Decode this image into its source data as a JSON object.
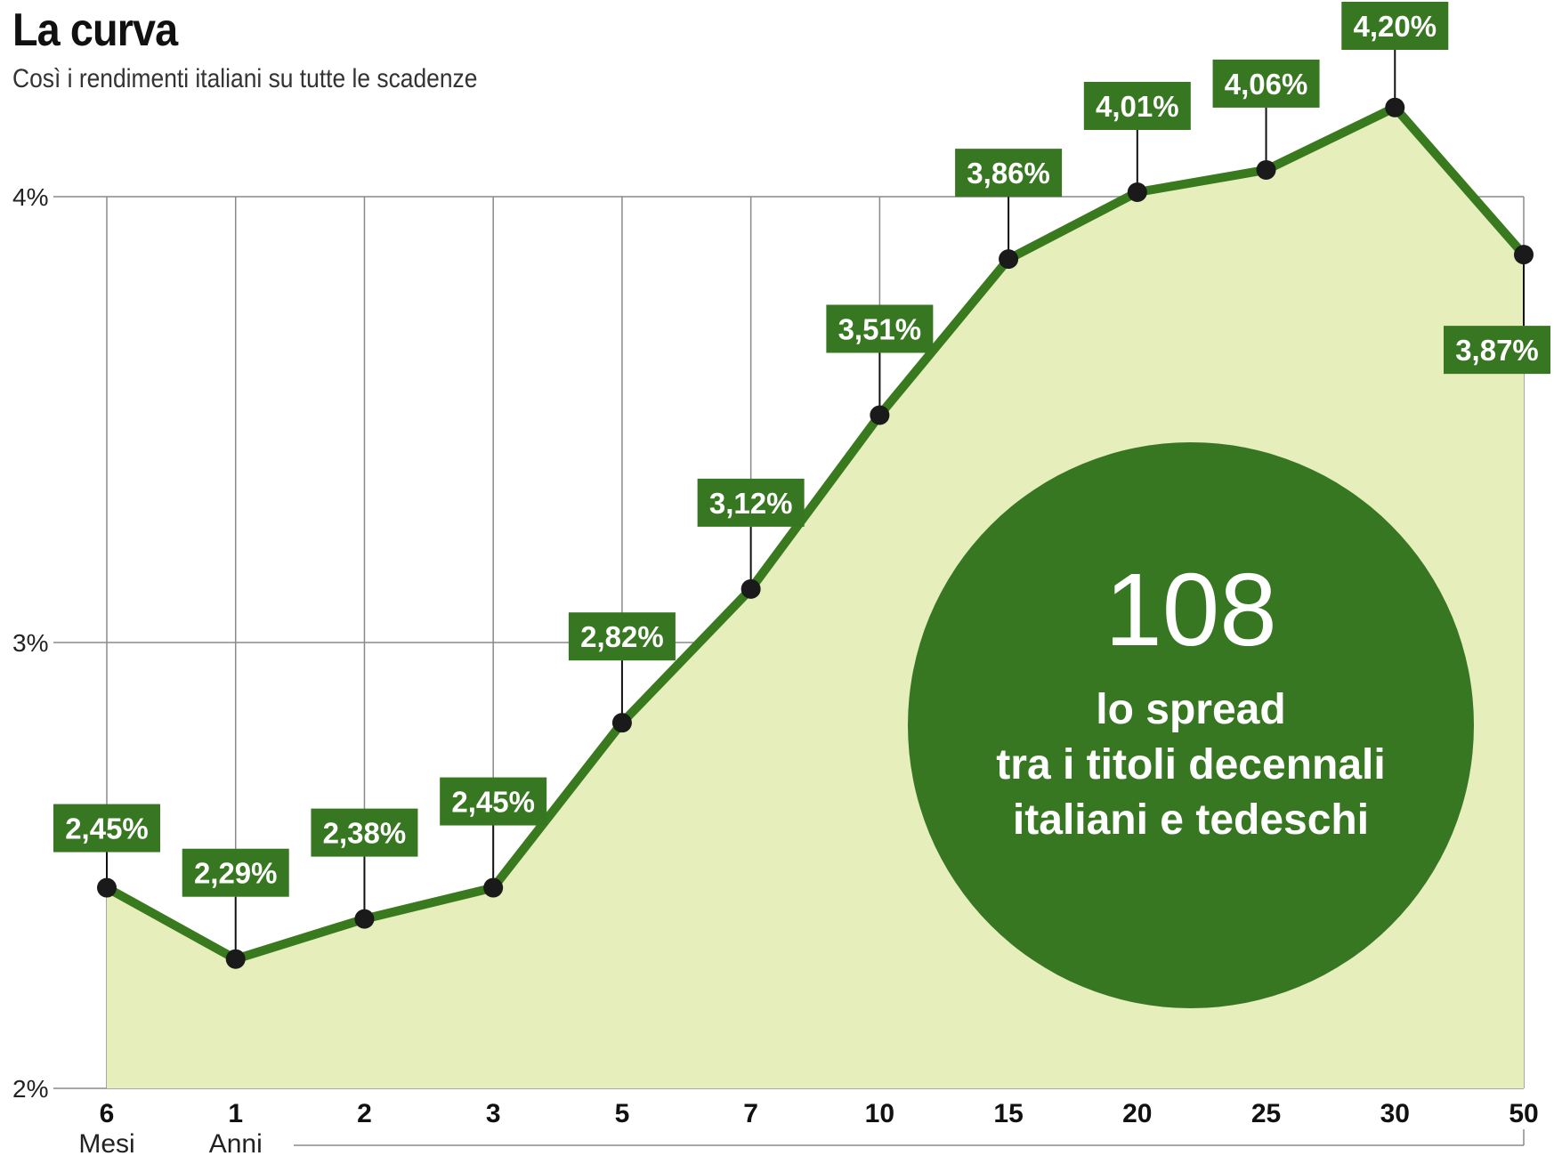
{
  "chart_data": {
    "type": "area",
    "title": "La curva",
    "subtitle": "Così i rendimenti italiani su tutte le scadenze",
    "categories": [
      "6",
      "1",
      "2",
      "3",
      "5",
      "7",
      "10",
      "15",
      "20",
      "25",
      "30",
      "50"
    ],
    "category_units": [
      "Mesi",
      "Anni"
    ],
    "values": [
      2.45,
      2.29,
      2.38,
      2.45,
      2.82,
      3.12,
      3.51,
      3.86,
      4.01,
      4.06,
      4.2,
      3.87
    ],
    "labels": [
      "2,45%",
      "2,29%",
      "2,38%",
      "2,45%",
      "2,82%",
      "3,12%",
      "3,51%",
      "3,86%",
      "4,01%",
      "4,06%",
      "4,20%",
      "3,87%"
    ],
    "yticks": [
      "2%",
      "3%",
      "4%"
    ],
    "ylim": [
      2,
      4.2
    ],
    "grid": true,
    "colors": {
      "line": "#3a7a1e",
      "fill": "#e6eebc",
      "badge": "#387722",
      "marker": "#1a1a1a",
      "grid": "#8a8a8a"
    }
  },
  "callout": {
    "value": "108",
    "lines": [
      "lo spread",
      "tra i titoli decennali",
      "italiani e tedeschi"
    ]
  }
}
